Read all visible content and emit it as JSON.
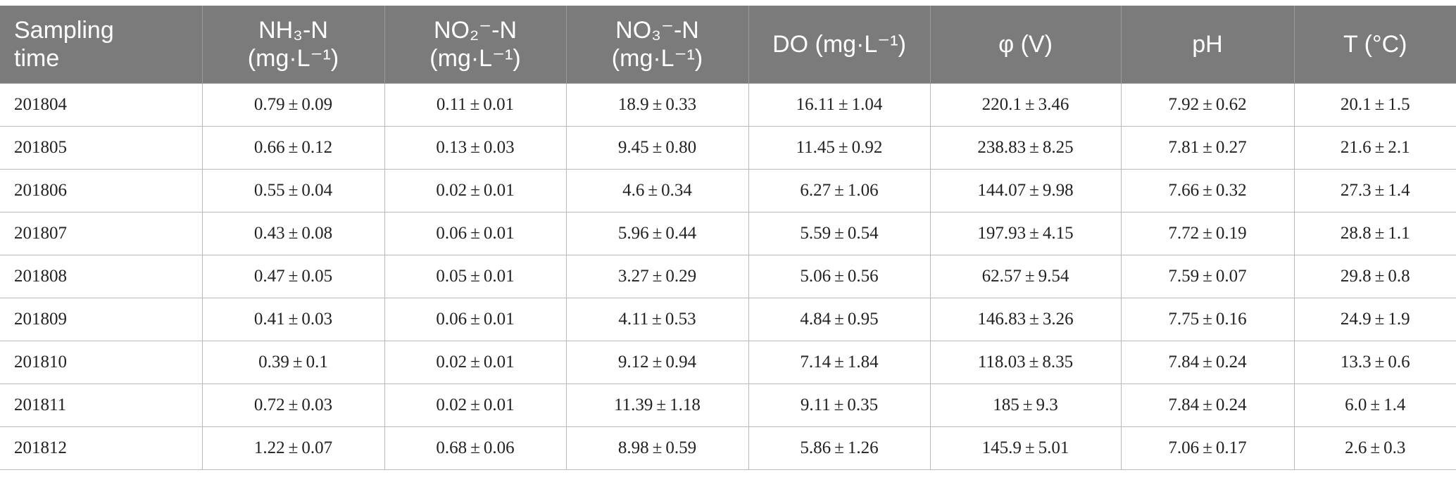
{
  "table": {
    "headers": [
      {
        "line1": "Sampling",
        "line2": "time"
      },
      {
        "line1": "NH₃-N",
        "line2": "(mg·L⁻¹)"
      },
      {
        "line1": "NO₂⁻-N",
        "line2": "(mg·L⁻¹)"
      },
      {
        "line1": "NO₃⁻-N",
        "line2": "(mg·L⁻¹)"
      },
      {
        "line1": "DO (mg·L⁻¹)",
        "line2": ""
      },
      {
        "line1": "φ (V)",
        "line2": ""
      },
      {
        "line1": "pH",
        "line2": ""
      },
      {
        "line1": "T (°C)",
        "line2": ""
      }
    ],
    "rows": [
      [
        "201804",
        "0.79 ± 0.09",
        "0.11 ± 0.01",
        "18.9 ± 0.33",
        "16.11 ± 1.04",
        "220.1 ± 3.46",
        "7.92 ± 0.62",
        "20.1 ± 1.5"
      ],
      [
        "201805",
        "0.66 ± 0.12",
        "0.13 ± 0.03",
        "9.45 ± 0.80",
        "11.45 ± 0.92",
        "238.83 ± 8.25",
        "7.81 ± 0.27",
        "21.6 ± 2.1"
      ],
      [
        "201806",
        "0.55 ± 0.04",
        "0.02 ± 0.01",
        "4.6 ± 0.34",
        "6.27 ± 1.06",
        "144.07 ± 9.98",
        "7.66 ± 0.32",
        "27.3 ± 1.4"
      ],
      [
        "201807",
        "0.43 ± 0.08",
        "0.06 ± 0.01",
        "5.96 ± 0.44",
        "5.59 ± 0.54",
        "197.93 ± 4.15",
        "7.72 ± 0.19",
        "28.8 ± 1.1"
      ],
      [
        "201808",
        "0.47 ± 0.05",
        "0.05 ± 0.01",
        "3.27 ± 0.29",
        "5.06 ± 0.56",
        "62.57 ± 9.54",
        "7.59 ± 0.07",
        "29.8 ± 0.8"
      ],
      [
        "201809",
        "0.41 ± 0.03",
        "0.06 ± 0.01",
        "4.11 ± 0.53",
        "4.84 ± 0.95",
        "146.83 ± 3.26",
        "7.75 ± 0.16",
        "24.9 ± 1.9"
      ],
      [
        "201810",
        "0.39 ± 0.1",
        "0.02 ± 0.01",
        "9.12 ± 0.94",
        "7.14 ± 1.84",
        "118.03 ± 8.35",
        "7.84 ± 0.24",
        "13.3 ± 0.6"
      ],
      [
        "201811",
        "0.72 ± 0.03",
        "0.02 ± 0.01",
        "11.39 ± 1.18",
        "9.11 ± 0.35",
        "185 ± 9.3",
        "7.84 ± 0.24",
        "6.0 ± 1.4"
      ],
      [
        "201812",
        "1.22 ± 0.07",
        "0.68 ± 0.06",
        "8.98 ± 0.59",
        "5.86 ± 1.26",
        "145.9 ± 5.01",
        "7.06 ± 0.17",
        "2.6 ± 0.3"
      ]
    ]
  },
  "colors": {
    "header_bg": "#7a7b7a",
    "header_text": "#ffffff",
    "grid_line": "#b9b9b9",
    "body_text": "#222222"
  }
}
